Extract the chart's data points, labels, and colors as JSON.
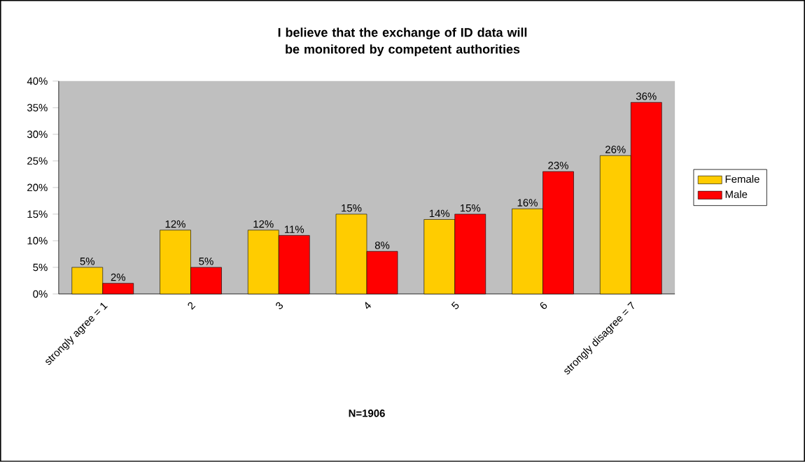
{
  "chart_data": {
    "type": "bar",
    "title": "I believe that the exchange of ID data will be monitored by competent authorities",
    "xlabel": "N=1906",
    "categories": [
      "strongly agree = 1",
      "2",
      "3",
      "4",
      "5",
      "6",
      "strongly disagree = 7"
    ],
    "series": [
      {
        "name": "Female",
        "color": "#ffcc00",
        "values": [
          5,
          12,
          12,
          15,
          14,
          16,
          26
        ],
        "value_labels": [
          "5%",
          "12%",
          "12%",
          "15%",
          "14%",
          "16%",
          "26%"
        ]
      },
      {
        "name": "Male",
        "color": "#ff0000",
        "values": [
          2,
          5,
          11,
          8,
          15,
          23,
          36
        ],
        "value_labels": [
          "2%",
          "5%",
          "11%",
          "8%",
          "15%",
          "23%",
          "36%"
        ]
      }
    ],
    "ylim": [
      0,
      40
    ],
    "yticks": [
      {
        "value": 0,
        "label": "0%"
      },
      {
        "value": 5,
        "label": "5%"
      },
      {
        "value": 10,
        "label": "10%"
      },
      {
        "value": 15,
        "label": "15%"
      },
      {
        "value": 20,
        "label": "20%"
      },
      {
        "value": 25,
        "label": "25%"
      },
      {
        "value": 30,
        "label": "30%"
      },
      {
        "value": 35,
        "label": "35%"
      },
      {
        "value": 40,
        "label": "40%"
      }
    ],
    "grid": false,
    "legend": "right"
  }
}
